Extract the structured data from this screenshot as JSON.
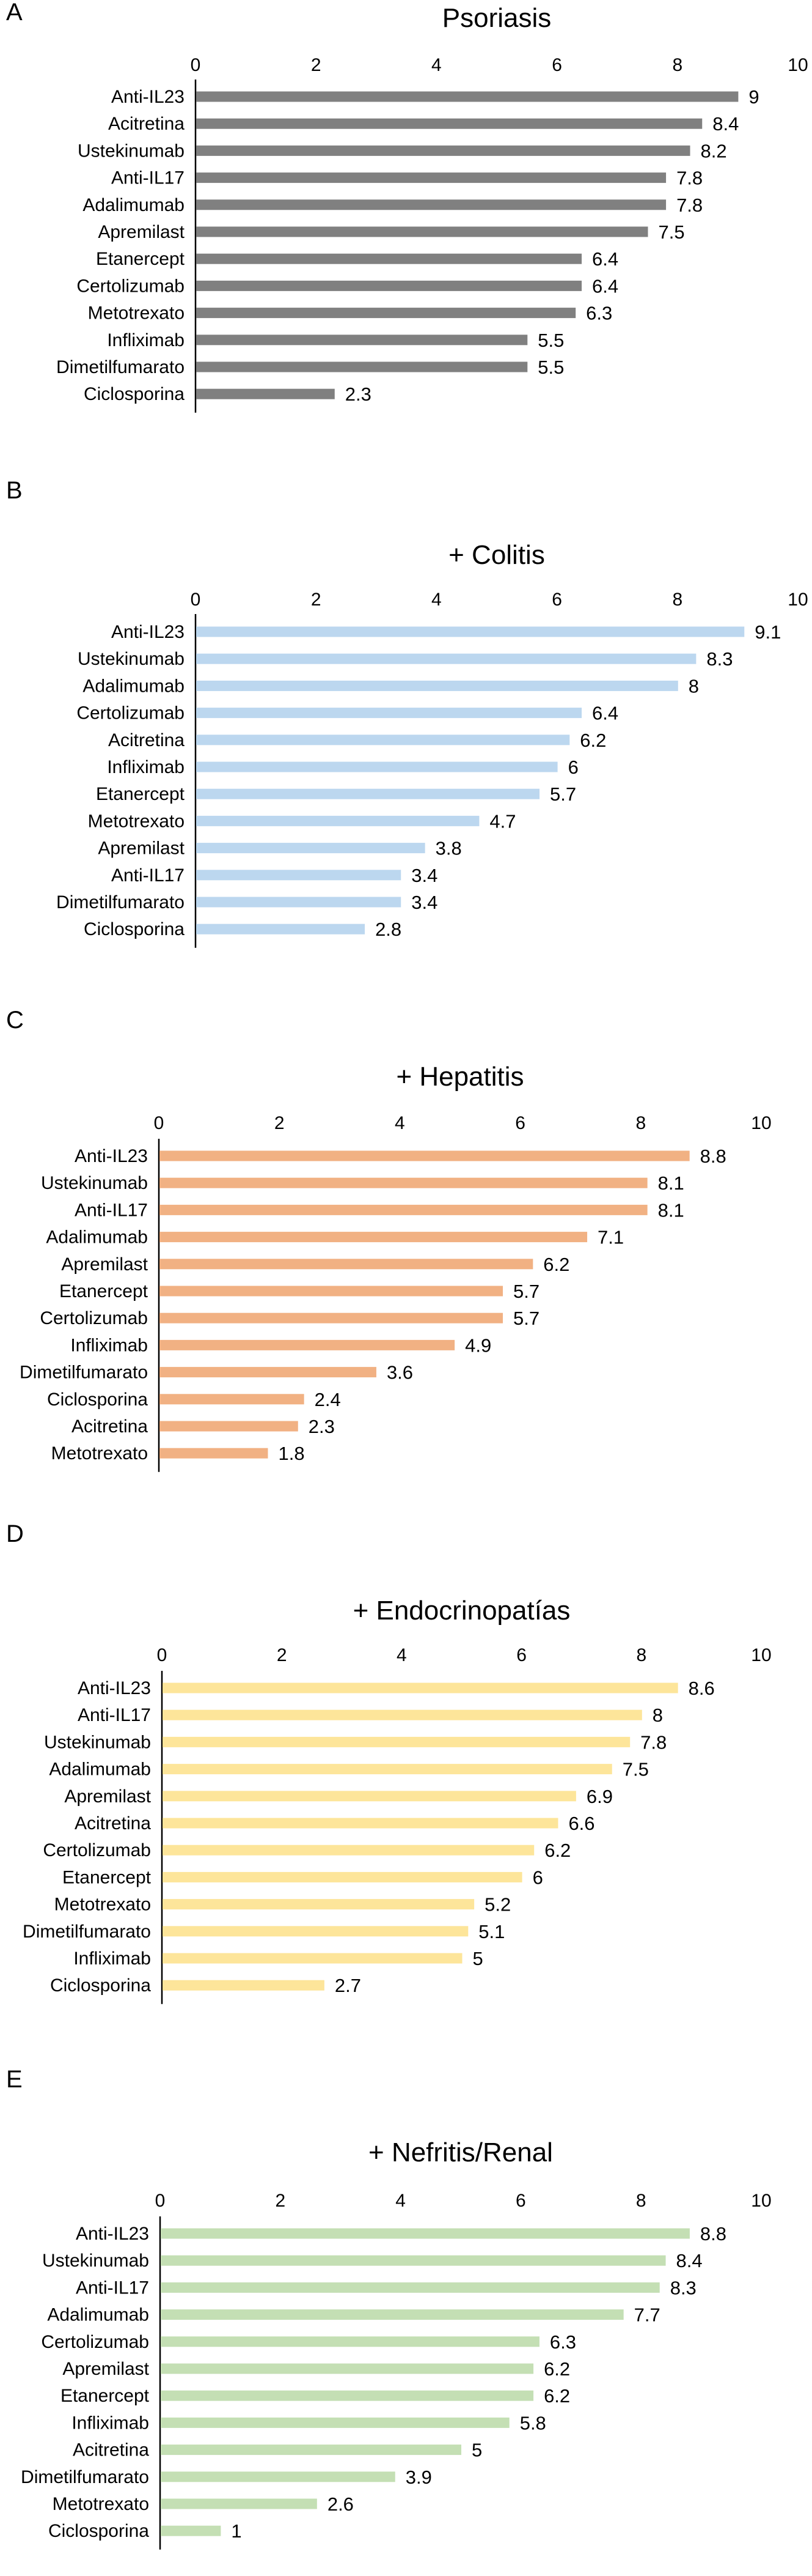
{
  "chart_data": [
    {
      "type": "bar",
      "orientation": "horizontal",
      "panel": "A",
      "title": "Psoriasis",
      "color": "#808080",
      "xlim": [
        0,
        10
      ],
      "xticks": [
        "0",
        "2",
        "4",
        "6",
        "8",
        "10"
      ],
      "categories": [
        "Anti-IL23",
        "Acitretina",
        "Ustekinumab",
        "Anti-IL17",
        "Adalimumab",
        "Apremilast",
        "Etanercept",
        "Certolizumab",
        "Metotrexato",
        "Infliximab",
        "Dimetilfumarato",
        "Ciclosporina"
      ],
      "values": [
        9,
        8.4,
        8.2,
        7.8,
        7.8,
        7.5,
        6.4,
        6.4,
        6.3,
        5.5,
        5.5,
        2.3
      ],
      "labels": [
        "9",
        "8.4",
        "8.2",
        "7.8",
        "7.8",
        "7.5",
        "6.4",
        "6.4",
        "6.3",
        "5.5",
        "5.5",
        "2.3"
      ]
    },
    {
      "type": "bar",
      "orientation": "horizontal",
      "panel": "B",
      "title": "+ Colitis",
      "color": "#bcd7ef",
      "xlim": [
        0,
        10
      ],
      "xticks": [
        "0",
        "2",
        "4",
        "6",
        "8",
        "10"
      ],
      "categories": [
        "Anti-IL23",
        "Ustekinumab",
        "Adalimumab",
        "Certolizumab",
        "Acitretina",
        "Infliximab",
        "Etanercept",
        "Metotrexato",
        "Apremilast",
        "Anti-IL17",
        "Dimetilfumarato",
        "Ciclosporina"
      ],
      "values": [
        9.1,
        8.3,
        8,
        6.4,
        6.2,
        6,
        5.7,
        4.7,
        3.8,
        3.4,
        3.4,
        2.8
      ],
      "labels": [
        "9.1",
        "8.3",
        "8",
        "6.4",
        "6.2",
        "6",
        "5.7",
        "4.7",
        "3.8",
        "3.4",
        "3.4",
        "2.8"
      ]
    },
    {
      "type": "bar",
      "orientation": "horizontal",
      "panel": "C",
      "title": "+ Hepatitis",
      "color": "#f1b183",
      "xlim": [
        0,
        10
      ],
      "xticks": [
        "0",
        "2",
        "4",
        "6",
        "8",
        "10"
      ],
      "categories": [
        "Anti-IL23",
        "Ustekinumab",
        "Anti-IL17",
        "Adalimumab",
        "Apremilast",
        "Etanercept",
        "Certolizumab",
        "Infliximab",
        "Dimetilfumarato",
        "Ciclosporina",
        "Acitretina",
        "Metotrexato"
      ],
      "values": [
        8.8,
        8.1,
        8.1,
        7.1,
        6.2,
        5.7,
        5.7,
        4.9,
        3.6,
        2.4,
        2.3,
        1.8
      ],
      "labels": [
        "8.8",
        "8.1",
        "8.1",
        "7.1",
        "6.2",
        "5.7",
        "5.7",
        "4.9",
        "3.6",
        "2.4",
        "2.3",
        "1.8"
      ]
    },
    {
      "type": "bar",
      "orientation": "horizontal",
      "panel": "D",
      "title": "+ Endocrinopatías",
      "color": "#fde59a",
      "xlim": [
        0,
        10
      ],
      "xticks": [
        "0",
        "2",
        "4",
        "6",
        "8",
        "10"
      ],
      "categories": [
        "Anti-IL23",
        "Anti-IL17",
        "Ustekinumab",
        "Adalimumab",
        "Apremilast",
        "Acitretina",
        "Certolizumab",
        "Etanercept",
        "Metotrexato",
        "Dimetilfumarato",
        "Infliximab",
        "Ciclosporina"
      ],
      "values": [
        8.6,
        8,
        7.8,
        7.5,
        6.9,
        6.6,
        6.2,
        6,
        5.2,
        5.1,
        5,
        2.7
      ],
      "labels": [
        "8.6",
        "8",
        "7.8",
        "7.5",
        "6.9",
        "6.6",
        "6.2",
        "6",
        "5.2",
        "5.1",
        "5",
        "2.7"
      ]
    },
    {
      "type": "bar",
      "orientation": "horizontal",
      "panel": "E",
      "title": "+ Nefritis/Renal",
      "color": "#c4dfb4",
      "xlim": [
        0,
        10
      ],
      "xticks": [
        "0",
        "2",
        "4",
        "6",
        "8",
        "10"
      ],
      "categories": [
        "Anti-IL23",
        "Ustekinumab",
        "Anti-IL17",
        "Adalimumab",
        "Certolizumab",
        "Apremilast",
        "Etanercept",
        "Infliximab",
        "Acitretina",
        "Dimetilfumarato",
        "Metotrexato",
        "Ciclosporina"
      ],
      "values": [
        8.8,
        8.4,
        8.3,
        7.7,
        6.3,
        6.2,
        6.2,
        5.8,
        5,
        3.9,
        2.6,
        1
      ],
      "labels": [
        "8.8",
        "8.4",
        "8.3",
        "7.7",
        "6.3",
        "6.2",
        "6.2",
        "5.8",
        "5",
        "3.9",
        "2.6",
        "1"
      ]
    }
  ]
}
